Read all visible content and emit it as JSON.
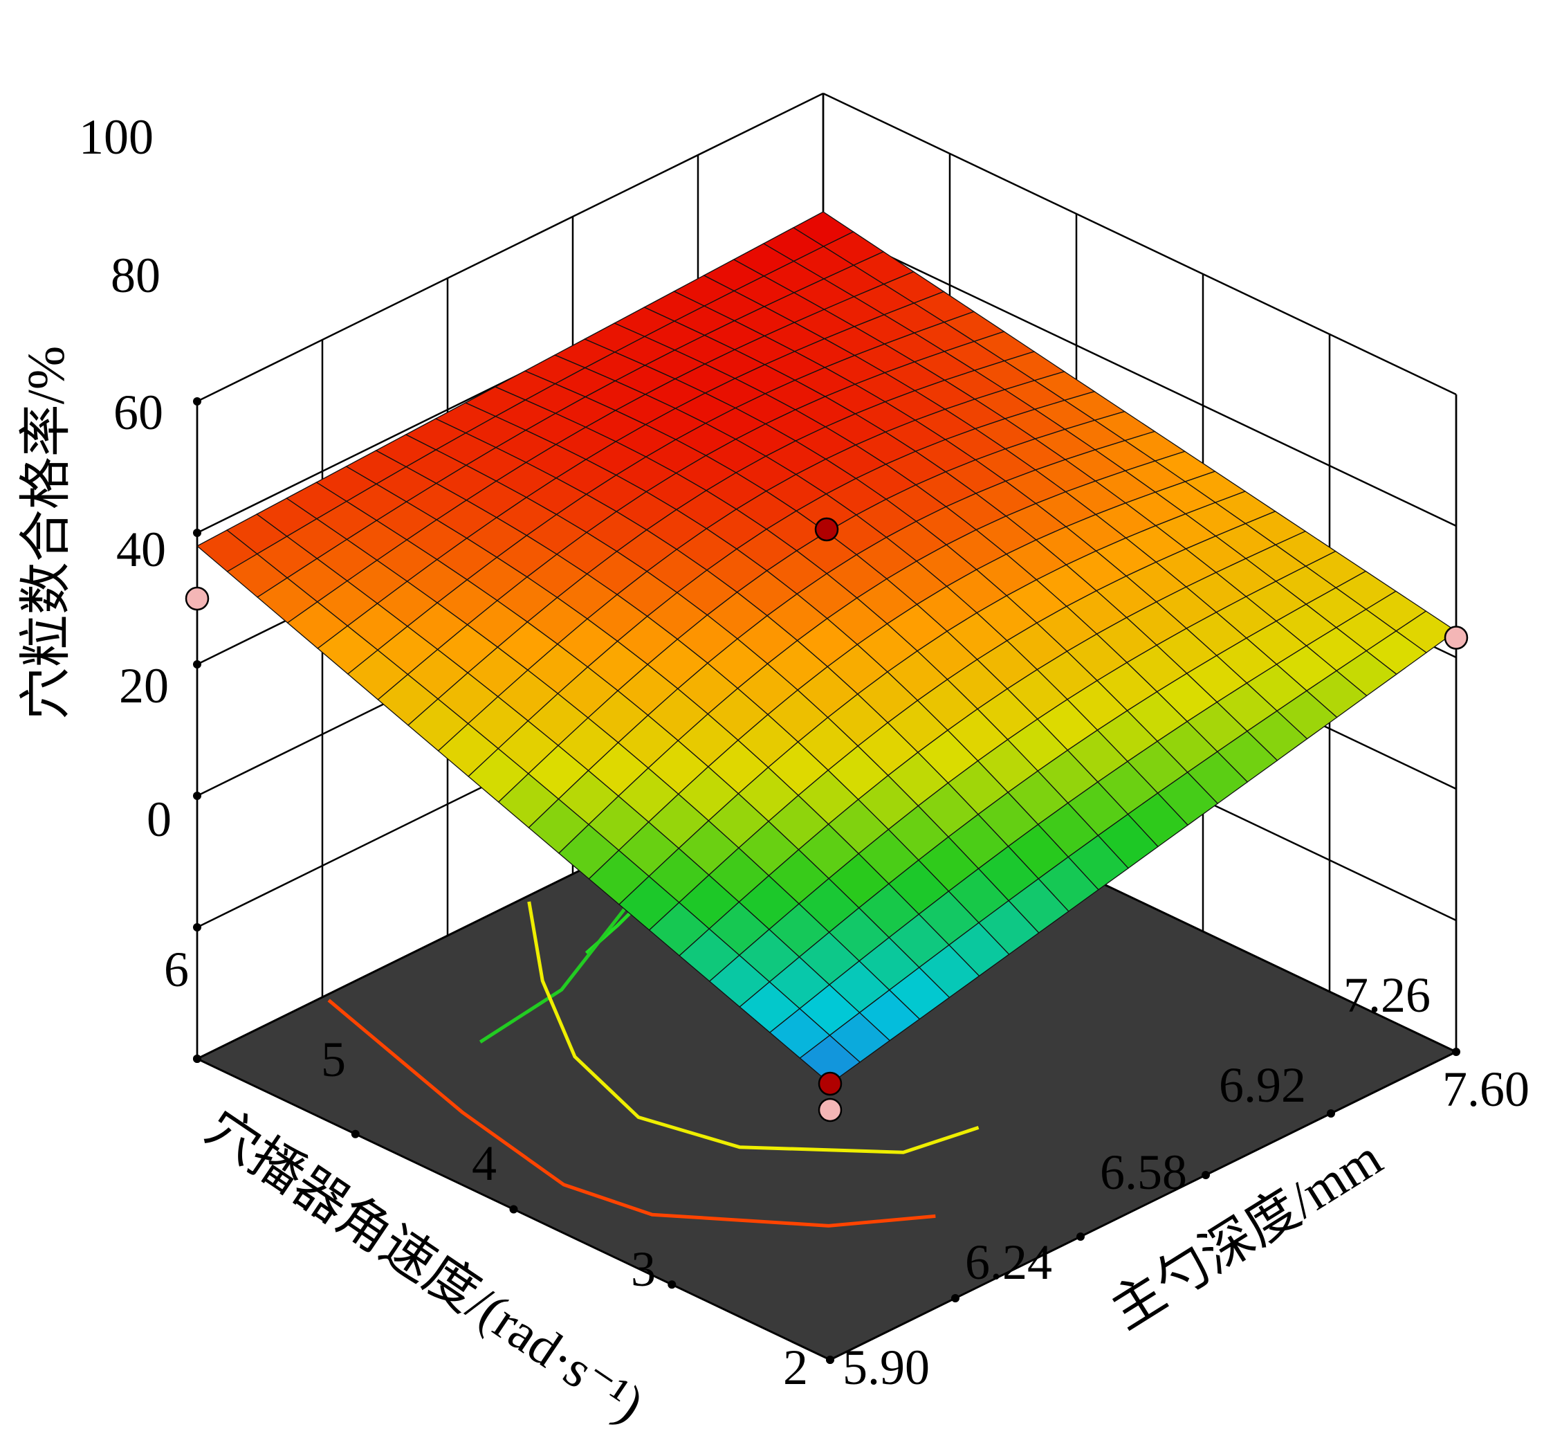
{
  "chart_data": {
    "type": "surface3d",
    "title": "",
    "zlabel": "穴粒数合格率/%",
    "xlabel": "主勺深度/mm",
    "ylabel": "穴播器角速度/(rad·s⁻¹)",
    "x_ticks": [
      "5.90",
      "6.24",
      "6.58",
      "6.92",
      "7.26",
      "7.60"
    ],
    "y_ticks": [
      "2",
      "3",
      "4",
      "5",
      "6"
    ],
    "z_ticks": [
      "0",
      "20",
      "40",
      "60",
      "80",
      "100"
    ],
    "xlim": [
      5.9,
      7.6
    ],
    "ylim": [
      2,
      6
    ],
    "zlim": [
      0,
      100
    ],
    "grid": true,
    "surface_corners": [
      {
        "x": 5.9,
        "y": 6,
        "z": 78
      },
      {
        "x": 5.9,
        "y": 2,
        "z": 42
      },
      {
        "x": 7.6,
        "y": 2,
        "z": 64
      },
      {
        "x": 7.6,
        "y": 6,
        "z": 82
      }
    ],
    "design_points": [
      {
        "x": 5.9,
        "y": 6,
        "z": 70,
        "color": "#f4b6b6"
      },
      {
        "x": 5.9,
        "y": 2,
        "z": 42,
        "color": "#b00000"
      },
      {
        "x": 5.9,
        "y": 2,
        "z": 38,
        "color": "#f4b6b6"
      },
      {
        "x": 7.6,
        "y": 2,
        "z": 63,
        "color": "#f4b6b6"
      },
      {
        "x": 6.75,
        "y": 4,
        "z": 80,
        "color": "#b00000"
      }
    ],
    "contour_levels": [
      {
        "color": "#00e5ee"
      },
      {
        "color": "#22dd22"
      },
      {
        "color": "#22cc22"
      },
      {
        "color": "#eeee00"
      },
      {
        "color": "#ff4400"
      }
    ],
    "floor_color": "#3a3a3a"
  }
}
